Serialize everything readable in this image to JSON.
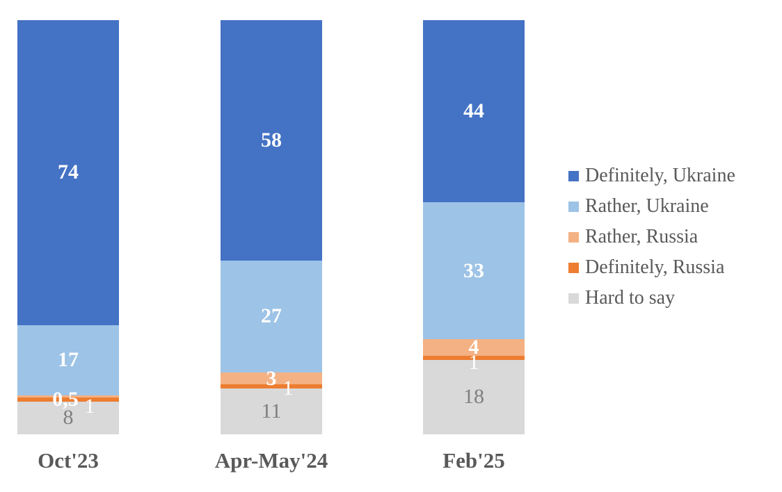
{
  "chart_data": {
    "type": "bar",
    "variant": "stacked-column-100",
    "title": "",
    "xlabel": "",
    "ylabel": "",
    "ylim": [
      0,
      100
    ],
    "grid": false,
    "background_color": "#FFFFFF",
    "axis_label_color": "#595959",
    "categories": [
      "Oct'23",
      "Apr-May'24",
      "Feb'25"
    ],
    "series": [
      {
        "name": "Definitely, Ukraine",
        "color": "#4472C4",
        "values": [
          74,
          58,
          44
        ],
        "labels": [
          "74",
          "58",
          "44"
        ],
        "label_color": "#FFFFFF",
        "label_bold": true
      },
      {
        "name": "Rather, Ukraine",
        "color": "#9DC3E6",
        "values": [
          17,
          27,
          33
        ],
        "labels": [
          "17",
          "27",
          "33"
        ],
        "label_color": "#FFFFFF",
        "label_bold": true
      },
      {
        "name": "Rather, Russia",
        "color": "#F4B183",
        "values": [
          0.5,
          3,
          4
        ],
        "labels": [
          "0,5",
          "3",
          "4"
        ],
        "label_color": "#FFFFFF",
        "label_bold": true
      },
      {
        "name": "Definitely, Russia",
        "color": "#ED7D31",
        "values": [
          1,
          1,
          1
        ],
        "labels": [
          "1",
          "1",
          "1"
        ],
        "label_color": "#FFFFFF",
        "label_bold": false
      },
      {
        "name": "Hard to say",
        "color": "#D9D9D9",
        "values": [
          8,
          11,
          18
        ],
        "labels": [
          "8",
          "11",
          "18"
        ],
        "label_color": "#7F7F7F",
        "label_bold": false
      }
    ],
    "stack_order_note": "first series renders at top of each column",
    "legend": {
      "position": "right",
      "text_color": "#595959",
      "entries": [
        "Definitely, Ukraine",
        "Rather, Ukraine",
        "Rather, Russia",
        "Definitely, Russia",
        "Hard to say"
      ]
    }
  }
}
